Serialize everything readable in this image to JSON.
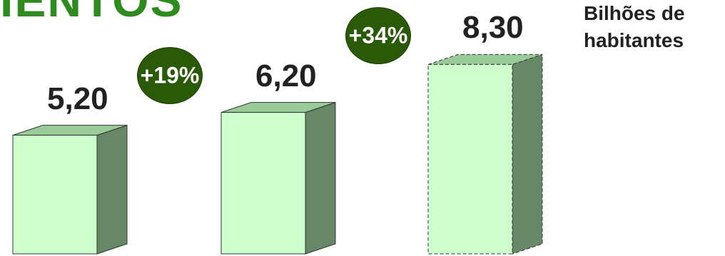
{
  "title_fragment": "IENTOS",
  "unit_label": {
    "line1": "Bilhões de",
    "line2": "habitantes"
  },
  "colors": {
    "bar_front": "#ccffcc",
    "bar_top": "#99cc99",
    "bar_side": "#668866",
    "badge": "#2a5a07",
    "title": "#2e8b1e"
  },
  "chart_data": {
    "type": "bar",
    "title": "",
    "xlabel": "",
    "ylabel": "Bilhões de habitantes",
    "categories": [
      "",
      "",
      ""
    ],
    "values": [
      5.2,
      6.2,
      8.3
    ],
    "value_labels": [
      "5,20",
      "6,20",
      "8,30"
    ],
    "growth_labels": [
      "+19%",
      "+34%"
    ],
    "third_bar_dashed_outline": true,
    "style": "3d",
    "grid": false
  }
}
